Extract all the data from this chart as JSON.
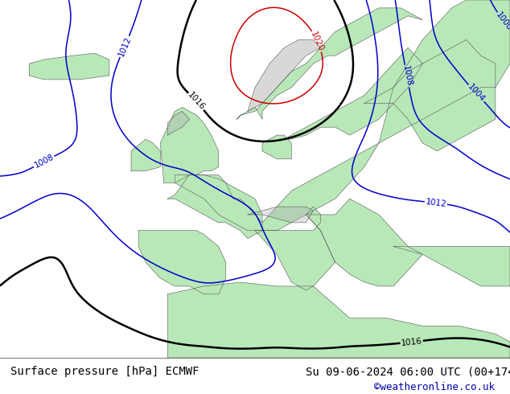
{
  "title_left": "Surface pressure [hPa] ECMWF",
  "title_right": "Su 09-06-2024 06:00 UTC (00+174)",
  "credit": "©weatheronline.co.uk",
  "bg_color": "#e8e8e8",
  "land_color": "#b8e8b8",
  "sea_color": "#d8d8d8",
  "contour_blue_color": "#0000cc",
  "contour_red_color": "#cc0000",
  "contour_black_color": "#000000",
  "credit_color": "#0000aa",
  "figsize": [
    6.34,
    4.9
  ],
  "dpi": 100,
  "map_extent": [
    -28,
    42,
    28,
    73
  ]
}
